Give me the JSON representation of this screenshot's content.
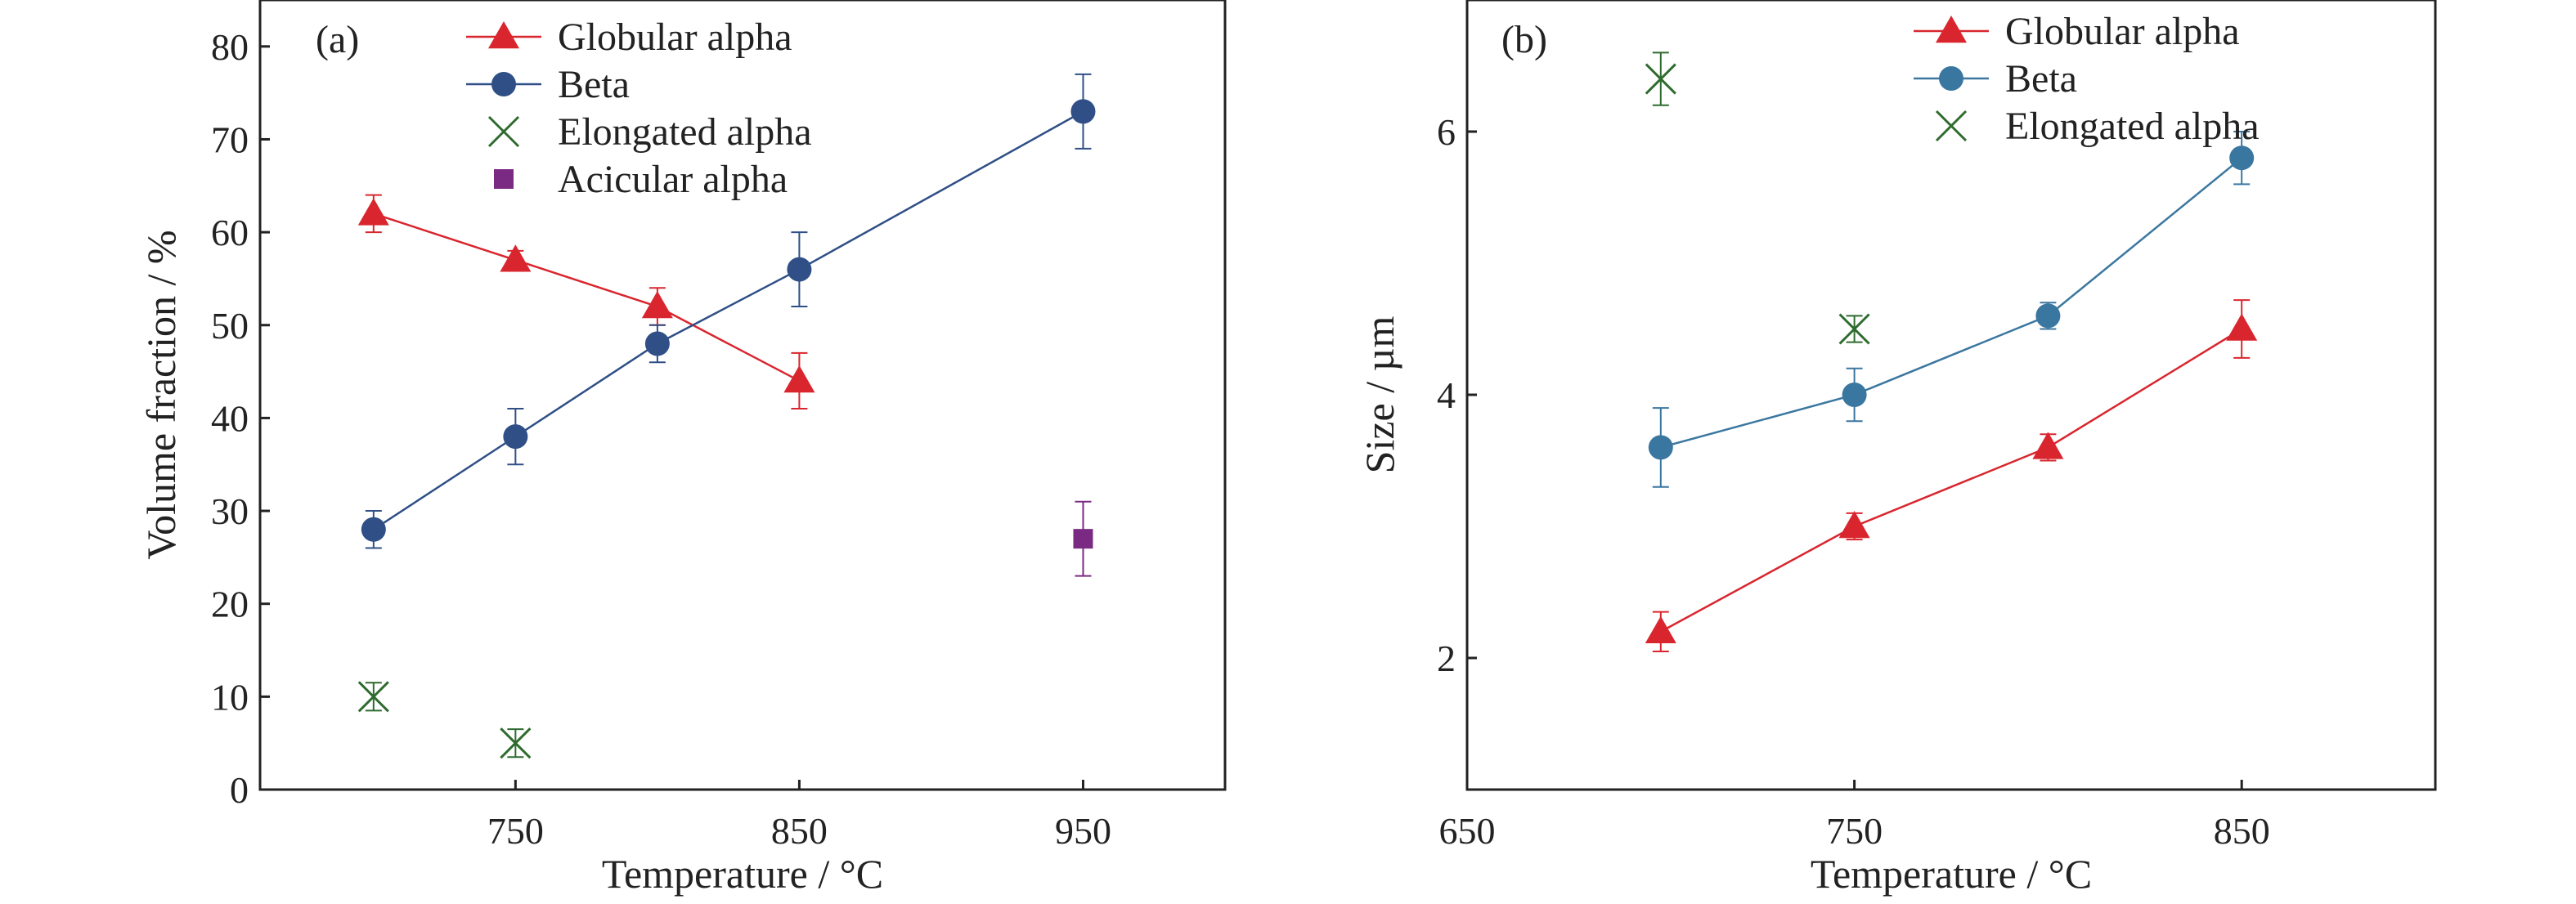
{
  "chart_data": [
    {
      "id": "a",
      "type": "line",
      "panel_label": "(a)",
      "xlabel": "Temperature / °C",
      "ylabel": "Volume fraction / %",
      "xlim": [
        660,
        1000
      ],
      "ylim": [
        0,
        85
      ],
      "xticks": [
        750,
        850,
        950
      ],
      "yticks": [
        0,
        10,
        20,
        30,
        40,
        50,
        60,
        70,
        80
      ],
      "grid": false,
      "legend_position": "top",
      "series": [
        {
          "name": "Globular alpha",
          "marker": "triangle",
          "color": "#d9262e",
          "connect": true,
          "points": [
            {
              "x": 700,
              "y": 62,
              "err": 2
            },
            {
              "x": 750,
              "y": 57,
              "err": 1
            },
            {
              "x": 800,
              "y": 52,
              "err": 2
            },
            {
              "x": 850,
              "y": 44,
              "err": 3
            }
          ]
        },
        {
          "name": "Beta",
          "marker": "circle",
          "color": "#2f4f86",
          "connect": true,
          "points": [
            {
              "x": 700,
              "y": 28,
              "err": 2
            },
            {
              "x": 750,
              "y": 38,
              "err": 3
            },
            {
              "x": 800,
              "y": 48,
              "err": 2
            },
            {
              "x": 850,
              "y": 56,
              "err": 4
            },
            {
              "x": 950,
              "y": 73,
              "err": 4
            }
          ]
        },
        {
          "name": "Elongated alpha",
          "marker": "x",
          "color": "#2e6b2e",
          "connect": false,
          "points": [
            {
              "x": 700,
              "y": 10,
              "err": 1.5
            },
            {
              "x": 750,
              "y": 5,
              "err": 1.5
            }
          ]
        },
        {
          "name": "Acicular alpha",
          "marker": "square",
          "color": "#7b2a83",
          "connect": false,
          "points": [
            {
              "x": 950,
              "y": 27,
              "err": 4
            }
          ]
        }
      ]
    },
    {
      "id": "b",
      "type": "line",
      "panel_label": "(b)",
      "xlabel": "Temperature / °C",
      "ylabel": "Size / µm",
      "xlim": [
        650,
        900
      ],
      "ylim": [
        1,
        7
      ],
      "xticks": [
        650,
        750,
        850
      ],
      "yticks": [
        2,
        4,
        6
      ],
      "grid": false,
      "legend_position": "top",
      "series": [
        {
          "name": "Globular alpha",
          "marker": "triangle",
          "color": "#d9262e",
          "connect": true,
          "points": [
            {
              "x": 700,
              "y": 2.2,
              "err": 0.15
            },
            {
              "x": 750,
              "y": 3.0,
              "err": 0.1
            },
            {
              "x": 800,
              "y": 3.6,
              "err": 0.1
            },
            {
              "x": 850,
              "y": 4.5,
              "err": 0.22
            }
          ]
        },
        {
          "name": "Beta",
          "marker": "circle",
          "color": "#3a77a0",
          "connect": true,
          "points": [
            {
              "x": 700,
              "y": 3.6,
              "err": 0.3
            },
            {
              "x": 750,
              "y": 4.0,
              "err": 0.2
            },
            {
              "x": 800,
              "y": 4.6,
              "err": 0.1
            },
            {
              "x": 850,
              "y": 5.8,
              "err": 0.2
            }
          ]
        },
        {
          "name": "Elongated alpha",
          "marker": "x",
          "color": "#2e6b2e",
          "connect": false,
          "points": [
            {
              "x": 700,
              "y": 6.4,
              "err": 0.2
            },
            {
              "x": 750,
              "y": 4.5,
              "err": 0.1
            }
          ]
        }
      ]
    }
  ]
}
